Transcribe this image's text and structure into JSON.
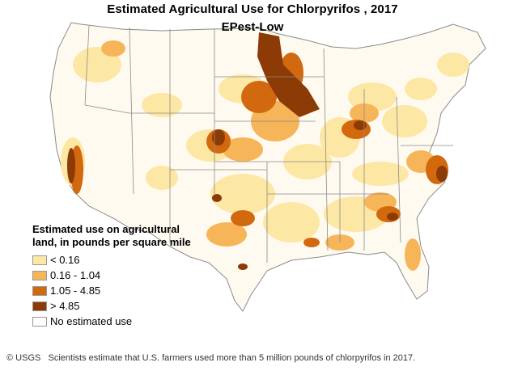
{
  "title": "Estimated Agricultural Use for Chlorpyrifos , 2017",
  "subtitle": "EPest-Low",
  "legend": {
    "title": "Estimated use on agricultural land, in pounds per square mile",
    "items": [
      {
        "label": "< 0.16",
        "color": "#fde7a4"
      },
      {
        "label": "0.16 - 1.04",
        "color": "#f7b55a"
      },
      {
        "label": "1.05 - 4.85",
        "color": "#d2690f"
      },
      {
        "label": "> 4.85",
        "color": "#8c3a06"
      },
      {
        "label": "No estimated use",
        "color": "#ffffff"
      }
    ]
  },
  "caption": {
    "credit": "© USGS",
    "text": "Scientists estimate that U.S. farmers used more than 5 million pounds of chlorpyrifos in 2017."
  },
  "colors": {
    "state_border": "#8a8a8a",
    "background": "#ffffff"
  }
}
